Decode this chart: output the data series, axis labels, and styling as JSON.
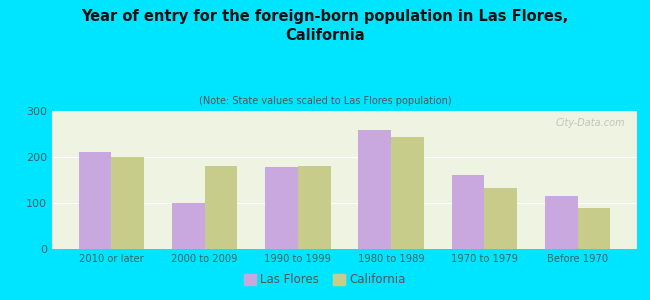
{
  "title": "Year of entry for the foreign-born population in Las Flores,\nCalifornia",
  "subtitle": "(Note: State values scaled to Las Flores population)",
  "categories": [
    "2010 or later",
    "2000 to 2009",
    "1990 to 1999",
    "1980 to 1989",
    "1970 to 1979",
    "Before 1970"
  ],
  "las_flores": [
    210,
    101,
    178,
    258,
    161,
    115
  ],
  "california": [
    200,
    180,
    180,
    243,
    132,
    90
  ],
  "bar_color_lf": "#c9a8e0",
  "bar_color_ca": "#c8cc8a",
  "bg_color": "#00e5ff",
  "plot_bg_color": "#eef3e2",
  "ylim": [
    0,
    300
  ],
  "yticks": [
    0,
    100,
    200,
    300
  ],
  "bar_width": 0.35,
  "legend_label_lf": "Las Flores",
  "legend_label_ca": "California",
  "watermark": "City-Data.com"
}
